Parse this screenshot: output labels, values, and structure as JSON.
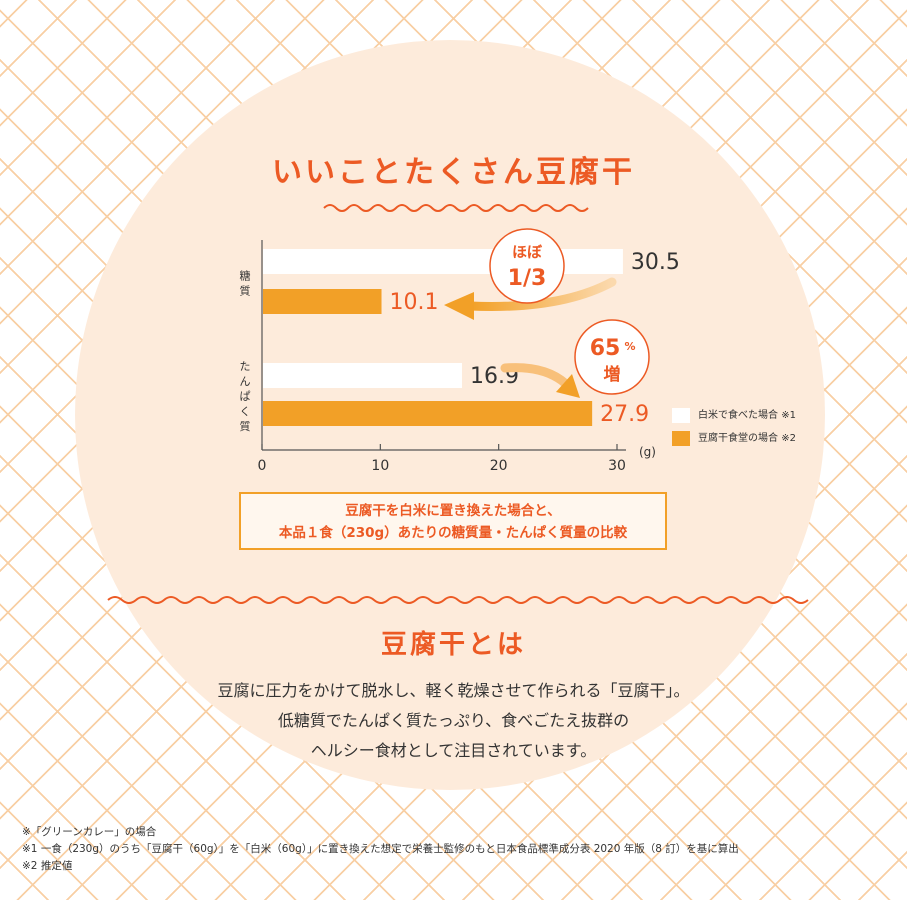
{
  "title": "いいことたくさん豆腐干",
  "chart_data": {
    "type": "bar",
    "orientation": "horizontal",
    "categories": [
      "糖質",
      "たんぱく質"
    ],
    "series": [
      {
        "name": "白米で食べた場合",
        "note": "※1",
        "color": "#ffffff",
        "values": [
          30.5,
          16.9
        ]
      },
      {
        "name": "豆腐干食堂の場合",
        "note": "※2",
        "color": "#f2a027",
        "values": [
          10.1,
          27.9
        ]
      }
    ],
    "xticks": [
      0,
      10,
      20,
      30
    ],
    "xlim": [
      0,
      30
    ],
    "unit": "(g)",
    "grid": false,
    "legend": "right",
    "annotations": [
      {
        "line1": "ほぼ",
        "line2": "1/3"
      },
      {
        "line1": "65",
        "sup": "%",
        "line2": "増"
      }
    ]
  },
  "caption": {
    "line1": "豆腐干を白米に置き換えた場合と、",
    "line2": "本品１食（230g）あたりの糖質量・たんぱく質量の比較"
  },
  "about": {
    "title": "豆腐干とは",
    "lines": [
      "豆腐に圧力をかけて脱水し、軽く乾燥させて作られる「豆腐干」。",
      "低糖質でたんぱく質たっぷり、食べごたえ抜群の",
      "ヘルシー食材として注目されています。"
    ]
  },
  "notes": [
    "※「グリーンカレー」の場合",
    "※1 一食（230g）のうち「豆腐干（60g）」を「白米（60g）」に置き換えた想定で栄養士監修のもと日本食品標準成分表 2020 年版（8 訂）を基に算出",
    "※2 推定値"
  ],
  "colors": {
    "accent": "#ec5a24",
    "orange": "#f2a027",
    "pattern": "#f8cfa4",
    "circle": "#fdebdb"
  }
}
